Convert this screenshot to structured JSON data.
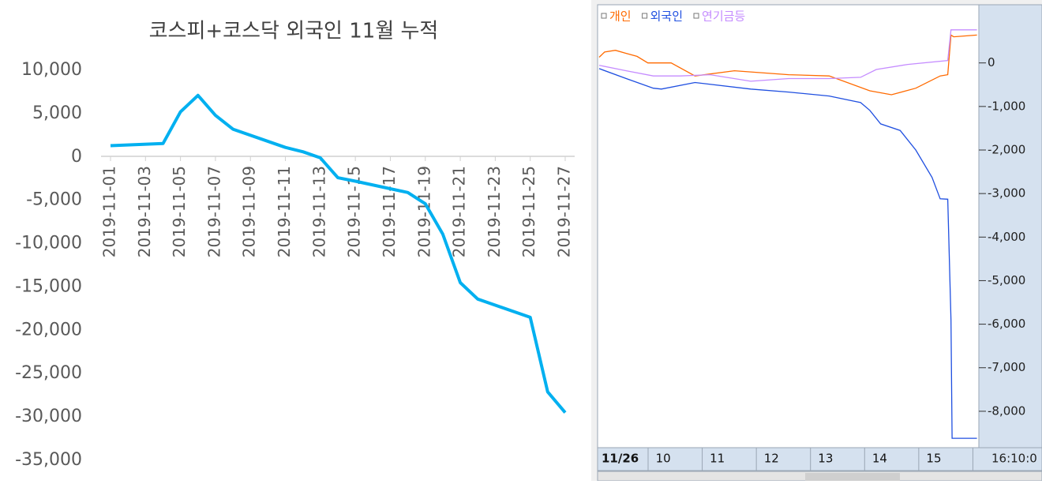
{
  "chart_data": [
    {
      "type": "line",
      "title": "코스피+코스닥 외국인 11월 누적",
      "x": [
        "2019-11-01",
        "2019-11-04",
        "2019-11-05",
        "2019-11-06",
        "2019-11-07",
        "2019-11-08",
        "2019-11-11",
        "2019-11-12",
        "2019-11-13",
        "2019-11-14",
        "2019-11-15",
        "2019-11-18",
        "2019-11-19",
        "2019-11-20",
        "2019-11-21",
        "2019-11-22",
        "2019-11-25",
        "2019-11-26",
        "2019-11-27"
      ],
      "values": [
        1300,
        1550,
        5200,
        7100,
        4800,
        3200,
        1100,
        600,
        -100,
        -2400,
        -2800,
        -4100,
        -5400,
        -8900,
        -14500,
        -16400,
        -18500,
        -27100,
        -29500
      ],
      "color": "#00b0f0",
      "xlim": [
        "2019-11-01",
        "2019-11-27"
      ],
      "xticks": [
        "2019-11-01",
        "2019-11-03",
        "2019-11-05",
        "2019-11-07",
        "2019-11-09",
        "2019-11-11",
        "2019-11-13",
        "2019-11-15",
        "2019-11-17",
        "2019-11-19",
        "2019-11-21",
        "2019-11-23",
        "2019-11-25",
        "2019-11-27"
      ],
      "ylim": [
        -35000,
        10000
      ],
      "yticks": [
        {
          "value": 10000,
          "label": "10,000"
        },
        {
          "value": 5000,
          "label": "5,000"
        },
        0,
        {
          "value": -5000,
          "label": "-5,000"
        },
        {
          "value": -10000,
          "label": "-10,000"
        },
        {
          "value": -15000,
          "label": "-15,000"
        },
        {
          "value": -20000,
          "label": "-20,000"
        },
        {
          "value": -25000,
          "label": "-25,000"
        },
        {
          "value": -30000,
          "label": "-30,000"
        },
        {
          "value": -35000,
          "label": "-35,000"
        }
      ],
      "grid": false
    },
    {
      "type": "line",
      "time_label": "16:10:0",
      "series": [
        {
          "name": "개인",
          "color": "#ff6a00",
          "x": [
            9.0,
            9.1,
            9.3,
            9.5,
            9.7,
            9.9,
            10.33,
            10.77,
            11.5,
            12.5,
            13.25,
            14.0,
            14.4,
            14.85,
            15.3,
            15.44,
            15.5,
            15.55,
            15.98
          ],
          "values": [
            130,
            250,
            290,
            220,
            150,
            0,
            0,
            -300,
            -180,
            -270,
            -300,
            -640,
            -730,
            -580,
            -300,
            -270,
            640,
            600,
            640
          ]
        },
        {
          "name": "외국인",
          "color": "#1f4fe0",
          "x": [
            9.0,
            9.5,
            10.0,
            10.15,
            10.77,
            11.8,
            12.5,
            13.25,
            13.83,
            14.0,
            14.2,
            14.56,
            14.85,
            15.15,
            15.3,
            15.44,
            15.5,
            15.52,
            15.98
          ],
          "values": [
            -130,
            -360,
            -580,
            -600,
            -450,
            -600,
            -670,
            -760,
            -910,
            -1090,
            -1400,
            -1550,
            -2000,
            -2630,
            -3120,
            -3130,
            -5900,
            -8620,
            -8620
          ]
        },
        {
          "name": "연기금등",
          "color": "#c58cff",
          "x": [
            9.0,
            9.5,
            10.0,
            10.5,
            11.05,
            11.8,
            12.5,
            13.25,
            13.83,
            14.12,
            14.7,
            15.44,
            15.5,
            15.98
          ],
          "values": [
            -55,
            -180,
            -300,
            -300,
            -270,
            -420,
            -360,
            -360,
            -330,
            -150,
            -35,
            55,
            760,
            760
          ]
        }
      ],
      "xlim": [
        9,
        16
      ],
      "xticks": [
        {
          "value": 9,
          "label": "11/26"
        },
        10,
        11,
        12,
        13,
        14,
        15
      ],
      "ylim": [
        -8800,
        1300
      ],
      "yticks": [
        0,
        {
          "value": -1000,
          "label": "-1,000"
        },
        {
          "value": -2000,
          "label": "-2,000"
        },
        {
          "value": -3000,
          "label": "-3,000"
        },
        {
          "value": -4000,
          "label": "-4,000"
        },
        {
          "value": -5000,
          "label": "-5,000"
        },
        {
          "value": -6000,
          "label": "-6,000"
        },
        {
          "value": -7000,
          "label": "-7,000"
        },
        {
          "value": -8000,
          "label": "-8,000"
        }
      ],
      "grid": false
    }
  ]
}
